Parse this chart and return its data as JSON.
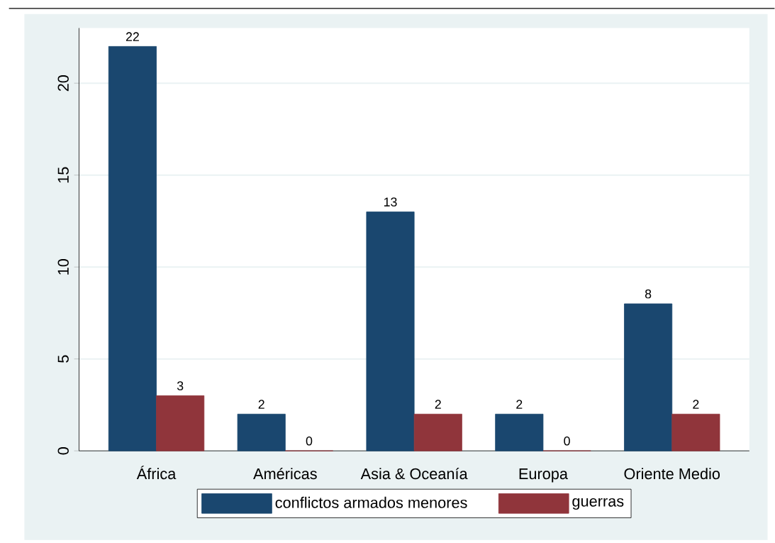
{
  "chart_data": {
    "type": "bar",
    "categories": [
      "África",
      "Américas",
      "Asia & Oceanía",
      "Europa",
      "Oriente Medio"
    ],
    "series": [
      {
        "name": "conflictos armados menores",
        "color": "#1a476f",
        "values": [
          22,
          2,
          13,
          2,
          8
        ]
      },
      {
        "name": "guerras",
        "color": "#90353b",
        "values": [
          3,
          0,
          2,
          0,
          2
        ]
      }
    ],
    "ylim": [
      0,
      23
    ],
    "yticks": [
      0,
      5,
      10,
      15,
      20
    ],
    "grid": "y",
    "legend": "bottom",
    "data_labels": true
  }
}
